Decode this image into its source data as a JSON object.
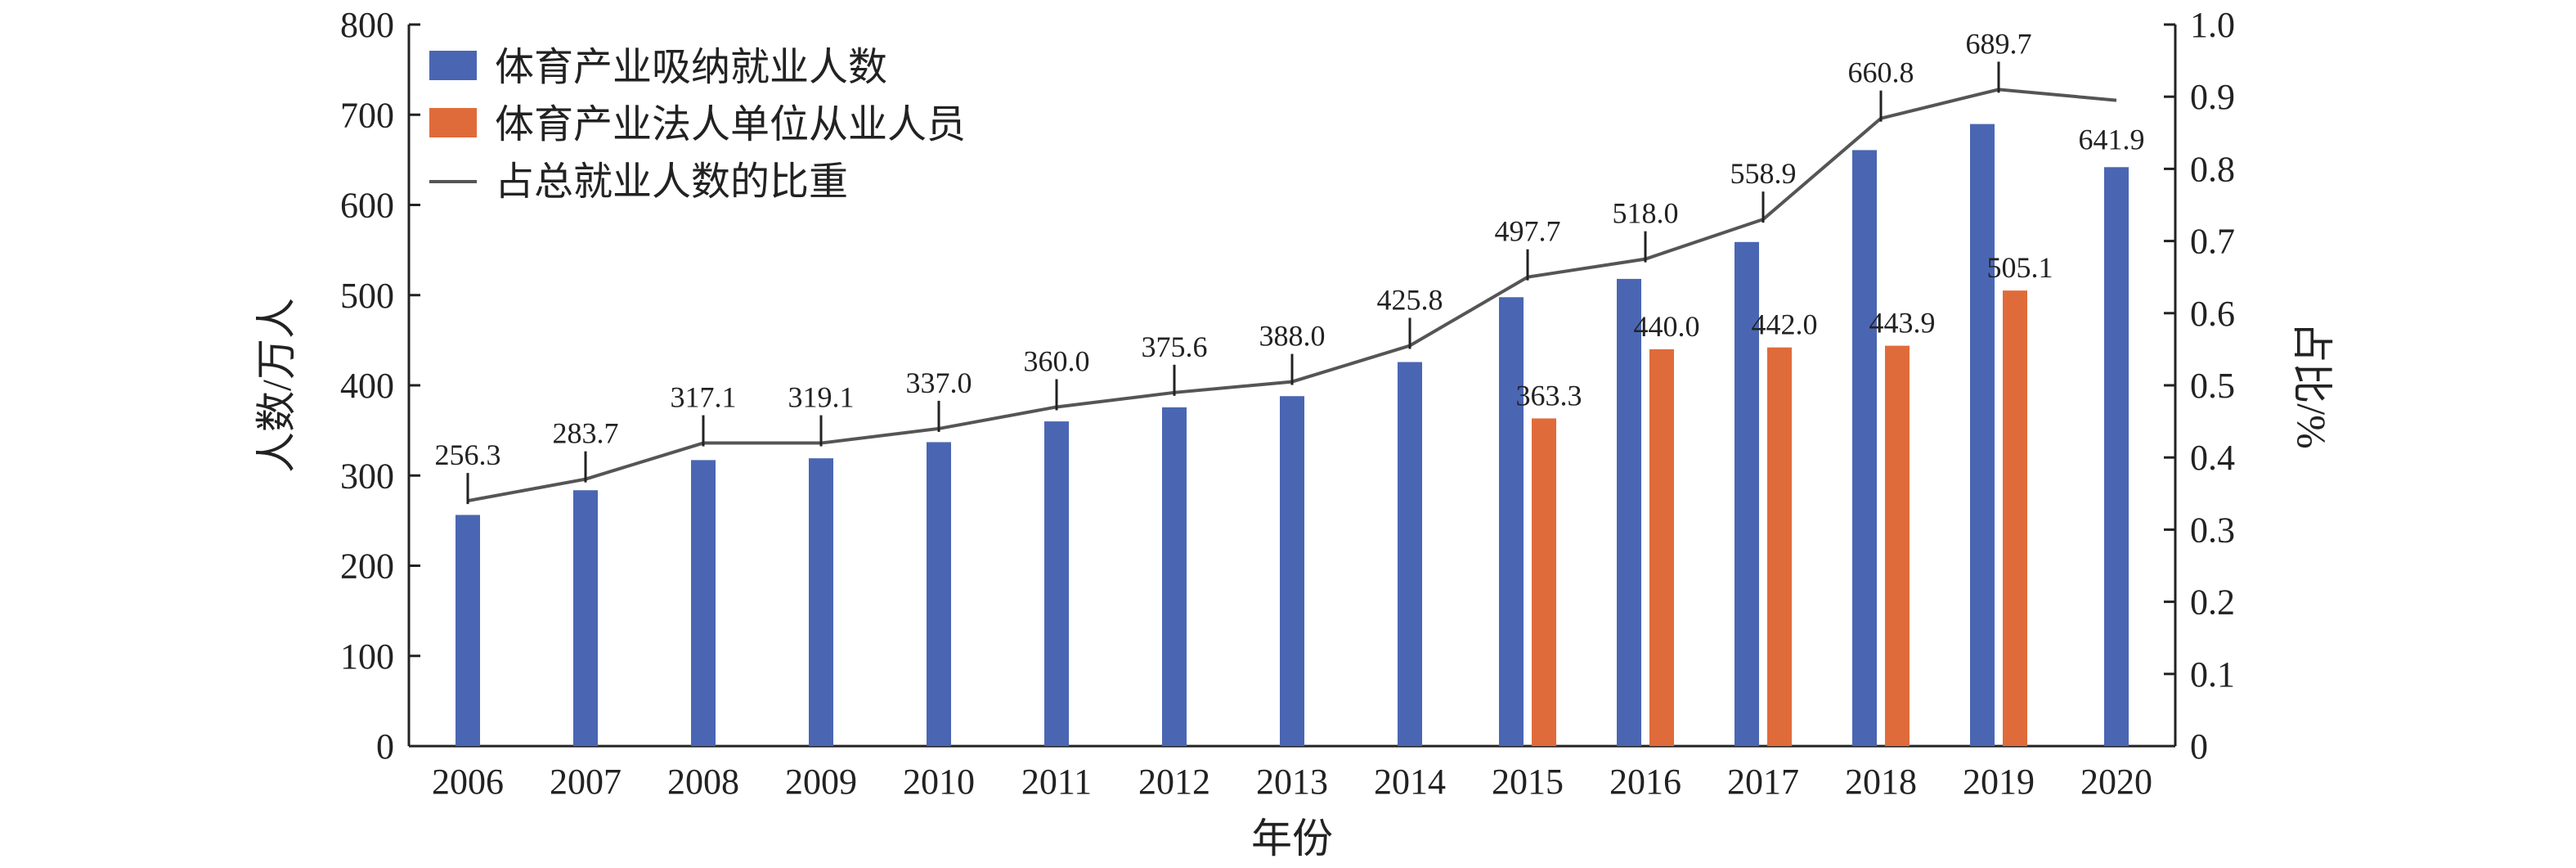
{
  "chart_data": {
    "type": "bar",
    "categories": [
      "2006",
      "2007",
      "2008",
      "2009",
      "2010",
      "2011",
      "2012",
      "2013",
      "2014",
      "2015",
      "2016",
      "2017",
      "2018",
      "2019",
      "2020"
    ],
    "series": [
      {
        "name": "体育产业吸纳就业人数",
        "type": "bar",
        "axis": "left",
        "color": "#4a66b3",
        "values": [
          256.3,
          283.7,
          317.1,
          319.1,
          337.0,
          360.0,
          375.6,
          388.0,
          425.8,
          497.7,
          518.0,
          558.9,
          660.8,
          689.7,
          641.9
        ],
        "labels": [
          "256.3",
          "283.7",
          "317.1",
          "319.1",
          "337.0",
          "360.0",
          "375.6",
          "388.0",
          "425.8",
          "497.7",
          "518.0",
          "558.9",
          "660.8",
          "689.7",
          "641.9"
        ]
      },
      {
        "name": "体育产业法人单位从业人员",
        "type": "bar",
        "axis": "left",
        "color": "#e06b3a",
        "values": [
          null,
          null,
          null,
          null,
          null,
          null,
          null,
          null,
          null,
          363.3,
          440.0,
          442.0,
          443.9,
          505.1,
          null
        ],
        "labels": [
          "",
          "",
          "",
          "",
          "",
          "",
          "",
          "",
          "",
          "363.3",
          "440.0",
          "442.0",
          "443.9",
          "505.1",
          ""
        ]
      },
      {
        "name": "占总就业人数的比重",
        "type": "line",
        "axis": "right",
        "color": "#555555",
        "values": [
          0.34,
          0.37,
          0.42,
          0.42,
          0.44,
          0.47,
          0.49,
          0.505,
          0.555,
          0.65,
          0.675,
          0.73,
          0.87,
          0.91,
          0.895
        ]
      }
    ],
    "xlabel": "年份",
    "ylabel": "人数/万人",
    "ylabel_right": "占比/%",
    "ylim": [
      0,
      800
    ],
    "yticks": [
      "0",
      "100",
      "200",
      "300",
      "400",
      "500",
      "600",
      "700",
      "800"
    ],
    "ylim_right": [
      0,
      1.0
    ],
    "yticks_right": [
      "0",
      "0.1",
      "0.2",
      "0.3",
      "0.4",
      "0.5",
      "0.6",
      "0.7",
      "0.8",
      "0.9",
      "1.0"
    ],
    "grid": false,
    "legend": "top-left"
  }
}
